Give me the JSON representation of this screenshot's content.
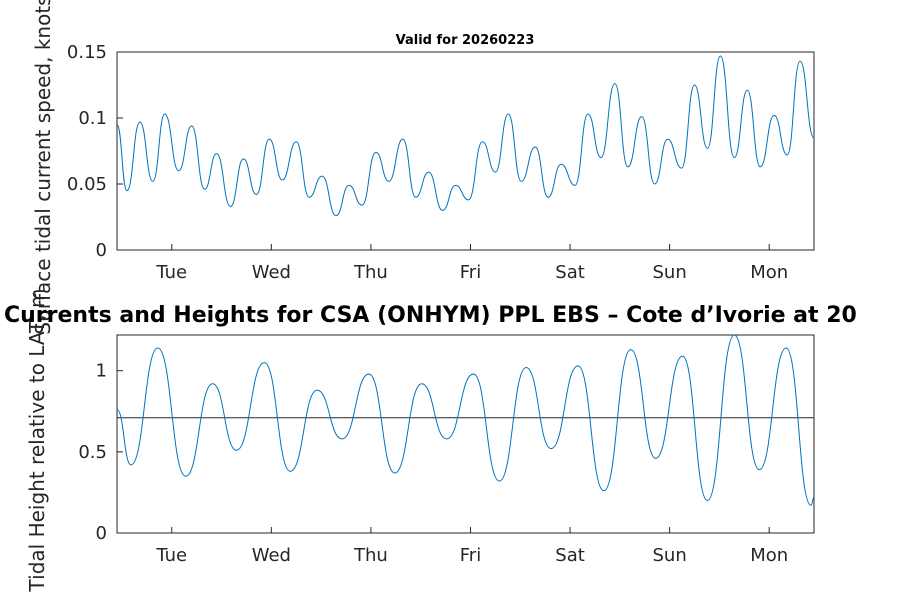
{
  "chart_data": [
    {
      "type": "line",
      "title": "Valid for 20260223",
      "ylabel": "Surface tidal current speed, knots",
      "xlabel": "",
      "ylim": [
        0,
        0.15
      ],
      "yticks": [
        0,
        0.05,
        0.1,
        0.15
      ],
      "ytick_labels": [
        "0",
        "0.05",
        "0.1",
        "0.15"
      ],
      "xlim": [
        0,
        7.0
      ],
      "xticks": [
        0.55,
        1.55,
        2.55,
        3.55,
        4.55,
        5.55,
        6.55
      ],
      "xtick_labels": [
        "Tue",
        "Wed",
        "Thu",
        "Fri",
        "Sat",
        "Sun",
        "Mon"
      ],
      "grid": false,
      "series": [
        {
          "name": "Surface tidal current speed",
          "color": "#0072BD",
          "x": [
            0,
            0.1,
            0.23,
            0.36,
            0.48,
            0.62,
            0.75,
            0.88,
            1.0,
            1.14,
            1.27,
            1.4,
            1.53,
            1.66,
            1.8,
            1.93,
            2.06,
            2.2,
            2.33,
            2.46,
            2.6,
            2.73,
            2.87,
            3.0,
            3.13,
            3.27,
            3.4,
            3.53,
            3.67,
            3.8,
            3.93,
            4.06,
            4.2,
            4.33,
            4.46,
            4.6,
            4.73,
            4.86,
            5.0,
            5.13,
            5.27,
            5.4,
            5.53,
            5.67,
            5.8,
            5.93,
            6.06,
            6.2,
            6.33,
            6.46,
            6.6,
            6.73,
            6.86,
            7.0
          ],
          "y": [
            0.095,
            0.045,
            0.097,
            0.052,
            0.103,
            0.06,
            0.094,
            0.046,
            0.073,
            0.033,
            0.069,
            0.042,
            0.084,
            0.053,
            0.082,
            0.04,
            0.056,
            0.026,
            0.049,
            0.034,
            0.074,
            0.052,
            0.084,
            0.04,
            0.059,
            0.03,
            0.049,
            0.038,
            0.082,
            0.059,
            0.103,
            0.052,
            0.078,
            0.04,
            0.065,
            0.049,
            0.103,
            0.07,
            0.126,
            0.063,
            0.101,
            0.05,
            0.084,
            0.062,
            0.125,
            0.077,
            0.147,
            0.07,
            0.121,
            0.063,
            0.102,
            0.072,
            0.143,
            0.085
          ]
        }
      ]
    },
    {
      "type": "line",
      "title": "Currents and Heights for CSA (ONHYM) PPL EBS  – Cote d’Ivorie at 20",
      "ylabel": "Tidal Height relative to LAT, m",
      "xlabel": "",
      "ylim": [
        0,
        1.22
      ],
      "yticks": [
        0,
        0.5,
        1
      ],
      "ytick_labels": [
        "0",
        "0.5",
        "1"
      ],
      "xlim": [
        0,
        7.0
      ],
      "xticks": [
        0.55,
        1.55,
        2.55,
        3.55,
        4.55,
        5.55,
        6.55
      ],
      "xtick_labels": [
        "Tue",
        "Wed",
        "Thu",
        "Fri",
        "Sat",
        "Sun",
        "Mon"
      ],
      "reference_line": 0.71,
      "grid": false,
      "series": [
        {
          "name": "Tidal height",
          "color": "#0072BD",
          "x": [
            0,
            0.14,
            0.41,
            0.69,
            0.96,
            1.2,
            1.48,
            1.74,
            2.01,
            2.26,
            2.53,
            2.79,
            3.06,
            3.31,
            3.58,
            3.84,
            4.11,
            4.36,
            4.63,
            4.89,
            5.16,
            5.41,
            5.68,
            5.93,
            6.2,
            6.45,
            6.72,
            6.97,
            7.0
          ],
          "y": [
            0.76,
            0.42,
            1.14,
            0.35,
            0.92,
            0.51,
            1.05,
            0.38,
            0.88,
            0.58,
            0.98,
            0.37,
            0.92,
            0.58,
            0.98,
            0.32,
            1.02,
            0.52,
            1.03,
            0.26,
            1.13,
            0.46,
            1.09,
            0.2,
            1.22,
            0.39,
            1.14,
            0.17,
            0.22
          ]
        }
      ]
    }
  ]
}
